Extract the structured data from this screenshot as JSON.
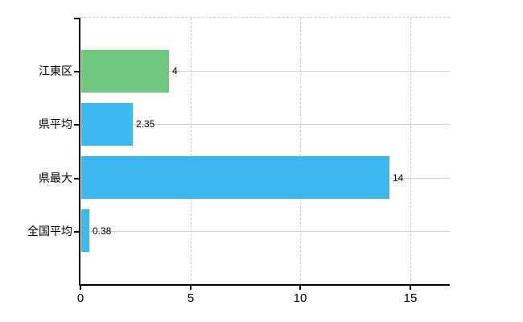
{
  "chart_data": {
    "type": "bar",
    "orientation": "horizontal",
    "title": "",
    "xlabel": "",
    "ylabel": "",
    "categories": [
      "江東区",
      "県平均",
      "県最大",
      "全国平均"
    ],
    "values": [
      4,
      2.35,
      14,
      0.38
    ],
    "value_labels": [
      "4",
      "2.35",
      "14",
      "0.38"
    ],
    "x_ticks": [
      0,
      5,
      10,
      15
    ],
    "x_tick_labels": [
      "0",
      "5",
      "10",
      "15"
    ],
    "xlim": [
      0,
      16.8
    ],
    "grid": "vertical dashed at x ticks, horizontal solid at category centers, dashed top border",
    "legend": "none",
    "colors": {
      "bar_highlight": "#6ec87e",
      "bar_default": "#3cb8ef",
      "bar_color_per_category": [
        "#6ec87e",
        "#3cb8ef",
        "#3cb8ef",
        "#3cb8ef"
      ],
      "axis": "#000000",
      "grid_vertical": "#cccccc",
      "grid_horizontal": "#cdd4cd",
      "text": "#000000",
      "background": "#ffffff"
    }
  }
}
